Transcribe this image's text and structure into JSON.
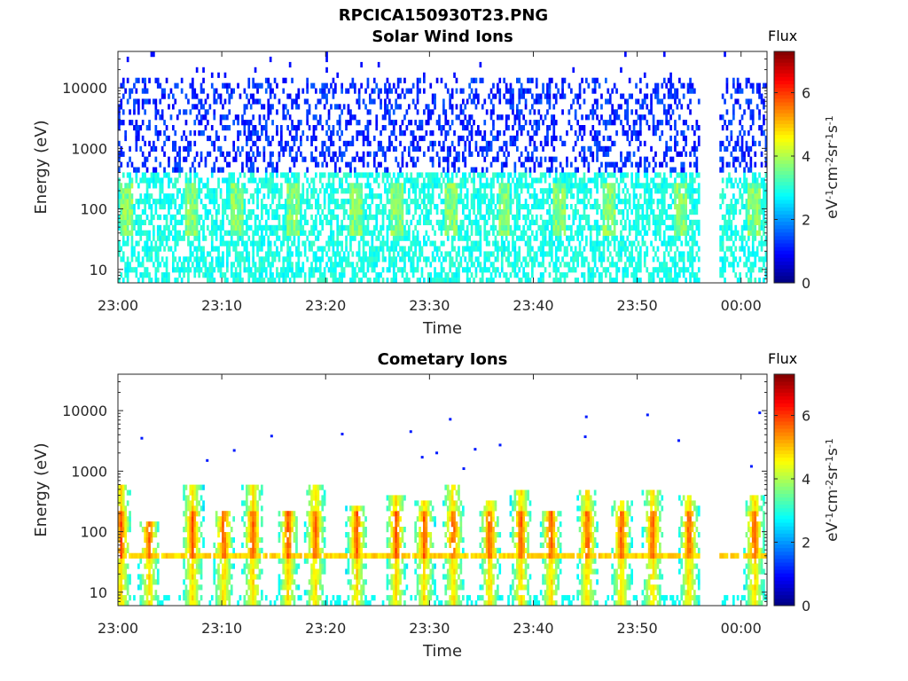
{
  "figure": {
    "title": "RPCICA150930T23.PNG"
  },
  "colors": {
    "axis": "#262626",
    "colormap": "jet"
  },
  "chart_data": [
    {
      "type": "heatmap",
      "title": "Solar Wind Ions",
      "xlabel": "Time",
      "ylabel": "Energy (eV)",
      "xlim": [
        "23:00",
        "00:02:30"
      ],
      "ylim": [
        6,
        40000
      ],
      "yscale": "log",
      "x_ticks": [
        "23:00",
        "23:10",
        "23:20",
        "23:30",
        "23:40",
        "23:50",
        "00:00"
      ],
      "y_ticks": [
        "10",
        "100",
        "1000",
        "10000"
      ],
      "data_gap": [
        "23:56",
        "23:58"
      ],
      "colorbar": {
        "title": "Flux",
        "unit_parts": [
          "eV",
          "-1",
          "cm",
          "-2",
          "sr",
          "-1",
          "s",
          "-1"
        ],
        "range": [
          0,
          7.3
        ],
        "ticks": [
          "0",
          "2",
          "4",
          "6"
        ]
      },
      "bursts_minutes": [
        0.8,
        7.1,
        11.5,
        16.8,
        22.9,
        26.8,
        32.1,
        37.2,
        42.5,
        47.3,
        54.2,
        61.2
      ],
      "noise_bands": [
        {
          "e_min": 6,
          "e_max": 400,
          "flux": 2.7,
          "density": 0.55
        },
        {
          "e_min": 400,
          "e_max": 15000,
          "flux": 1.1,
          "density": 0.35
        }
      ]
    },
    {
      "type": "heatmap",
      "title": "Cometary Ions",
      "xlabel": "Time",
      "ylabel": "Energy (eV)",
      "xlim": [
        "23:00",
        "00:02:30"
      ],
      "ylim": [
        6,
        40000
      ],
      "yscale": "log",
      "x_ticks": [
        "23:00",
        "23:10",
        "23:20",
        "23:30",
        "23:40",
        "23:50",
        "00:00"
      ],
      "y_ticks": [
        "10",
        "100",
        "1000",
        "10000"
      ],
      "data_gap": [
        "23:56",
        "23:58"
      ],
      "colorbar": {
        "title": "Flux",
        "unit_parts": [
          "eV",
          "-1",
          "cm",
          "-2",
          "sr",
          "-1",
          "s",
          "-1"
        ],
        "range": [
          0,
          7.3
        ],
        "ticks": [
          "0",
          "2",
          "4",
          "6"
        ]
      },
      "bursts_minutes": [
        0.3,
        3.0,
        7.2,
        10.2,
        13.0,
        16.4,
        19.0,
        23.0,
        26.8,
        29.5,
        32.3,
        35.8,
        38.8,
        41.7,
        45.2,
        48.5,
        51.5,
        55.0,
        61.3
      ],
      "band_energy_eV": 40,
      "sparse_points": [
        {
          "minute": 2.3,
          "energy": 3500
        },
        {
          "minute": 8.6,
          "energy": 1500
        },
        {
          "minute": 11.2,
          "energy": 2200
        },
        {
          "minute": 14.8,
          "energy": 3800
        },
        {
          "minute": 21.6,
          "energy": 4100
        },
        {
          "minute": 28.2,
          "energy": 4500
        },
        {
          "minute": 29.3,
          "energy": 1700
        },
        {
          "minute": 30.7,
          "energy": 2000
        },
        {
          "minute": 32.0,
          "energy": 7200
        },
        {
          "minute": 33.3,
          "energy": 1100
        },
        {
          "minute": 34.4,
          "energy": 2300
        },
        {
          "minute": 36.8,
          "energy": 2700
        },
        {
          "minute": 45.1,
          "energy": 7900
        },
        {
          "minute": 45.0,
          "energy": 3700
        },
        {
          "minute": 51.0,
          "energy": 8500
        },
        {
          "minute": 54.0,
          "energy": 3200
        },
        {
          "minute": 61.8,
          "energy": 9200
        },
        {
          "minute": 61.0,
          "energy": 1200
        }
      ]
    }
  ]
}
